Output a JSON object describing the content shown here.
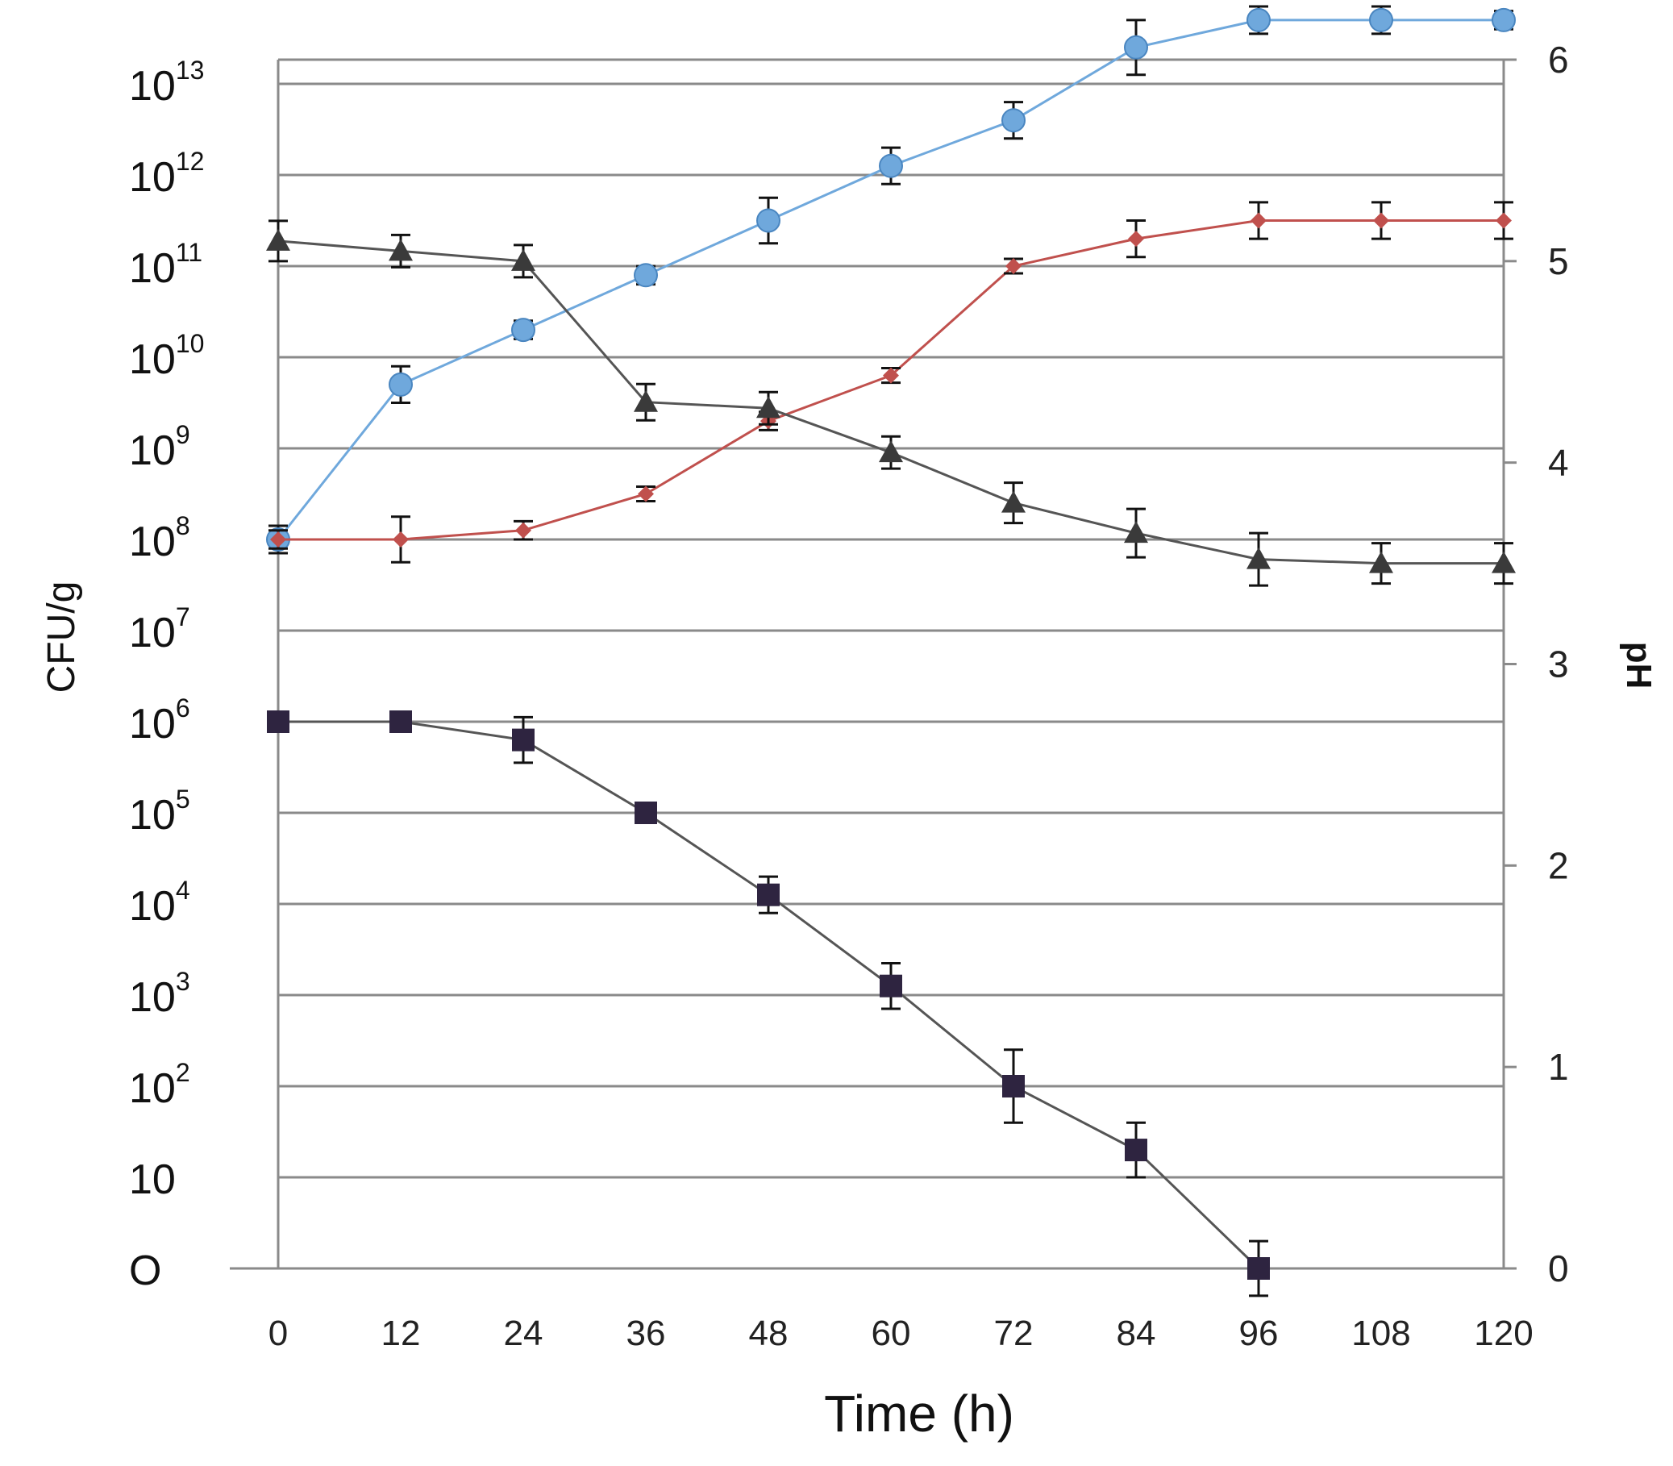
{
  "chart_data": {
    "type": "line",
    "title": "",
    "xlabel": "Time (h)",
    "ylabel": "CFU/g",
    "y2label": "pH",
    "x": [
      0,
      12,
      24,
      36,
      48,
      60,
      72,
      84,
      96,
      108,
      120
    ],
    "xlim": [
      0,
      120
    ],
    "ylim_log": [
      0,
      13
    ],
    "y2lim": [
      0,
      6
    ],
    "grid": true,
    "left_ticks": [
      {
        "base": "O",
        "exp": ""
      },
      {
        "base": "10",
        "exp": ""
      },
      {
        "base": "10",
        "exp": "2"
      },
      {
        "base": "10",
        "exp": "3"
      },
      {
        "base": "10",
        "exp": "4"
      },
      {
        "base": "10",
        "exp": "5"
      },
      {
        "base": "10",
        "exp": "6"
      },
      {
        "base": "10",
        "exp": "7"
      },
      {
        "base": "10",
        "exp": "8"
      },
      {
        "base": "10",
        "exp": "9"
      },
      {
        "base": "10",
        "exp": "10"
      },
      {
        "base": "10",
        "exp": "11"
      },
      {
        "base": "10",
        "exp": "12"
      },
      {
        "base": "10",
        "exp": "13"
      }
    ],
    "right_ticks": [
      "0",
      "1",
      "2",
      "3",
      "4",
      "5",
      "6"
    ],
    "x_ticks": [
      "0",
      "12",
      "24",
      "36",
      "48",
      "60",
      "72",
      "84",
      "96",
      "108",
      "120"
    ],
    "series": [
      {
        "name": "blue-circles",
        "axis": "left",
        "marker": "circle",
        "color": "#6fa8dc",
        "line_color": "#6fa8dc",
        "values": [
          8.0,
          9.7,
          10.3,
          10.9,
          11.5,
          12.1,
          12.6,
          13.4,
          13.7,
          13.7,
          13.7
        ],
        "errors": [
          0.15,
          0.2,
          0.1,
          0.1,
          0.25,
          0.2,
          0.2,
          0.3,
          0.15,
          0.15,
          0.1
        ]
      },
      {
        "name": "red-diamonds",
        "axis": "left",
        "marker": "diamond",
        "color": "#c0504d",
        "line_color": "#c0504d",
        "values": [
          8.0,
          8.0,
          8.1,
          8.5,
          9.3,
          9.8,
          11.0,
          11.3,
          11.5,
          11.5,
          11.5
        ],
        "errors": [
          0.1,
          0.25,
          0.1,
          0.08,
          0.1,
          0.08,
          0.08,
          0.2,
          0.2,
          0.2,
          0.2
        ]
      },
      {
        "name": "black-triangles-pH",
        "axis": "right",
        "marker": "triangle",
        "color": "#3a3a3a",
        "line_color": "#555555",
        "values": [
          5.1,
          5.05,
          5.0,
          4.3,
          4.27,
          4.05,
          3.8,
          3.65,
          3.52,
          3.5,
          3.5
        ],
        "errors": [
          0.1,
          0.08,
          0.08,
          0.09,
          0.08,
          0.08,
          0.1,
          0.12,
          0.13,
          0.1,
          0.1
        ]
      },
      {
        "name": "dark-squares",
        "axis": "left",
        "marker": "square",
        "color": "#2e2440",
        "line_color": "#555555",
        "values": [
          6.0,
          6.0,
          5.8,
          5.0,
          4.1,
          3.1,
          2.0,
          1.3,
          0.0,
          null,
          null
        ],
        "errors": [
          0.0,
          0.0,
          0.25,
          0.08,
          0.2,
          0.25,
          0.4,
          0.3,
          0.3,
          null,
          null
        ]
      }
    ]
  }
}
